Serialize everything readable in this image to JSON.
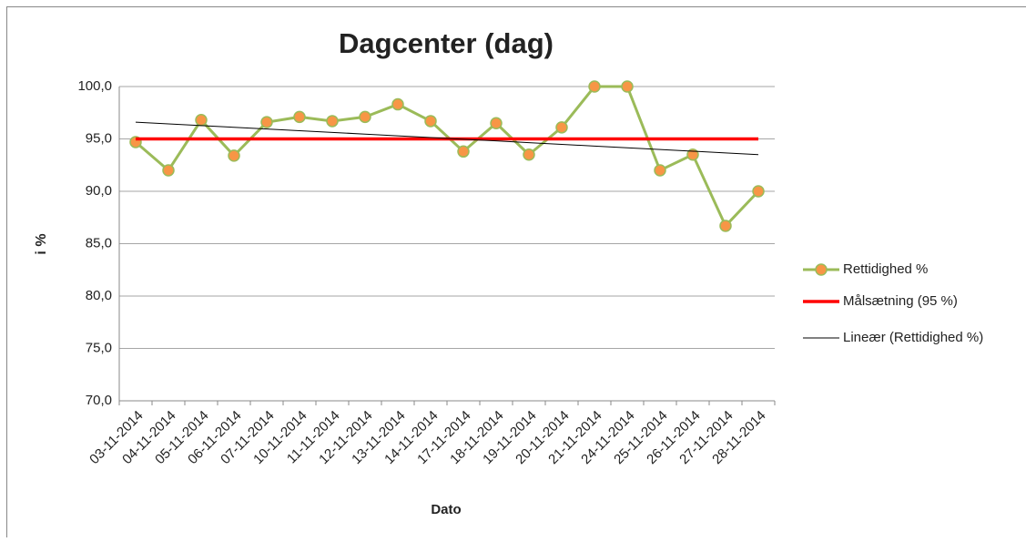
{
  "chart_data": {
    "type": "line",
    "title": "Dagcenter (dag)",
    "x_label": "Dato",
    "y_label": "i %",
    "categories": [
      "03-11-2014",
      "04-11-2014",
      "05-11-2014",
      "06-11-2014",
      "07-11-2014",
      "10-11-2014",
      "11-11-2014",
      "12-11-2014",
      "13-11-2014",
      "14-11-2014",
      "17-11-2014",
      "18-11-2014",
      "19-11-2014",
      "20-11-2014",
      "21-11-2014",
      "24-11-2014",
      "25-11-2014",
      "26-11-2014",
      "27-11-2014",
      "28-11-2014"
    ],
    "series": [
      {
        "name": "Rettidighed %",
        "color": "#9bbb59",
        "marker_color": "#f79646",
        "values": [
          94.7,
          92.0,
          96.8,
          93.4,
          96.6,
          97.1,
          96.7,
          97.1,
          98.3,
          96.7,
          93.8,
          96.5,
          93.5,
          96.1,
          100.0,
          100.0,
          92.0,
          93.5,
          86.7,
          90.0
        ]
      },
      {
        "name": "Målsætning (95 %)",
        "color": "#ff0000",
        "values": [
          95,
          95,
          95,
          95,
          95,
          95,
          95,
          95,
          95,
          95,
          95,
          95,
          95,
          95,
          95,
          95,
          95,
          95,
          95,
          95
        ]
      },
      {
        "name": "Lineær (Rettidighed %)",
        "color": "#000000",
        "values": [
          96.6,
          96.44,
          96.27,
          96.11,
          95.95,
          95.78,
          95.62,
          95.46,
          95.29,
          95.13,
          94.97,
          94.81,
          94.64,
          94.48,
          94.32,
          94.15,
          93.99,
          93.83,
          93.66,
          93.5
        ]
      }
    ],
    "ylim": [
      70,
      100
    ],
    "yticks": [
      {
        "value": 70,
        "label": "70,0"
      },
      {
        "value": 75,
        "label": "75,0"
      },
      {
        "value": 80,
        "label": "80,0"
      },
      {
        "value": 85,
        "label": "85,0"
      },
      {
        "value": 90,
        "label": "90,0"
      },
      {
        "value": 95,
        "label": "95,0"
      },
      {
        "value": 100,
        "label": "100,0"
      }
    ],
    "grid": true
  }
}
